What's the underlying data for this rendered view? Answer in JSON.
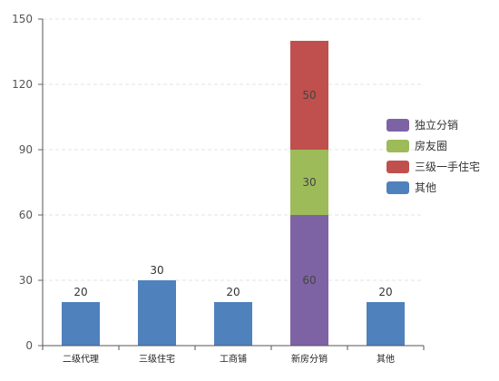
{
  "chart_data": {
    "type": "bar",
    "stacked": true,
    "categories": [
      "二级代理",
      "三级住宅",
      "工商铺",
      "新房分销",
      "其他"
    ],
    "series": [
      {
        "name": "独立分销",
        "color": "#7e63a4",
        "values": [
          0,
          0,
          0,
          60,
          0
        ]
      },
      {
        "name": "房友圈",
        "color": "#9dbb59",
        "values": [
          0,
          0,
          0,
          30,
          0
        ]
      },
      {
        "name": "三级一手住宅",
        "color": "#c0504d",
        "values": [
          0,
          0,
          0,
          50,
          0
        ]
      },
      {
        "name": "其他",
        "color": "#4f81bd",
        "values": [
          20,
          30,
          20,
          0,
          20
        ]
      }
    ],
    "legend_order": [
      "独立分销",
      "房友圈",
      "三级一手住宅",
      "其他"
    ],
    "legend_position": "right",
    "ylim": [
      0,
      150
    ],
    "yticks": [
      0,
      30,
      60,
      90,
      120,
      150
    ],
    "grid": "horizontal-dashed",
    "title": "",
    "xlabel": "",
    "ylabel": ""
  }
}
